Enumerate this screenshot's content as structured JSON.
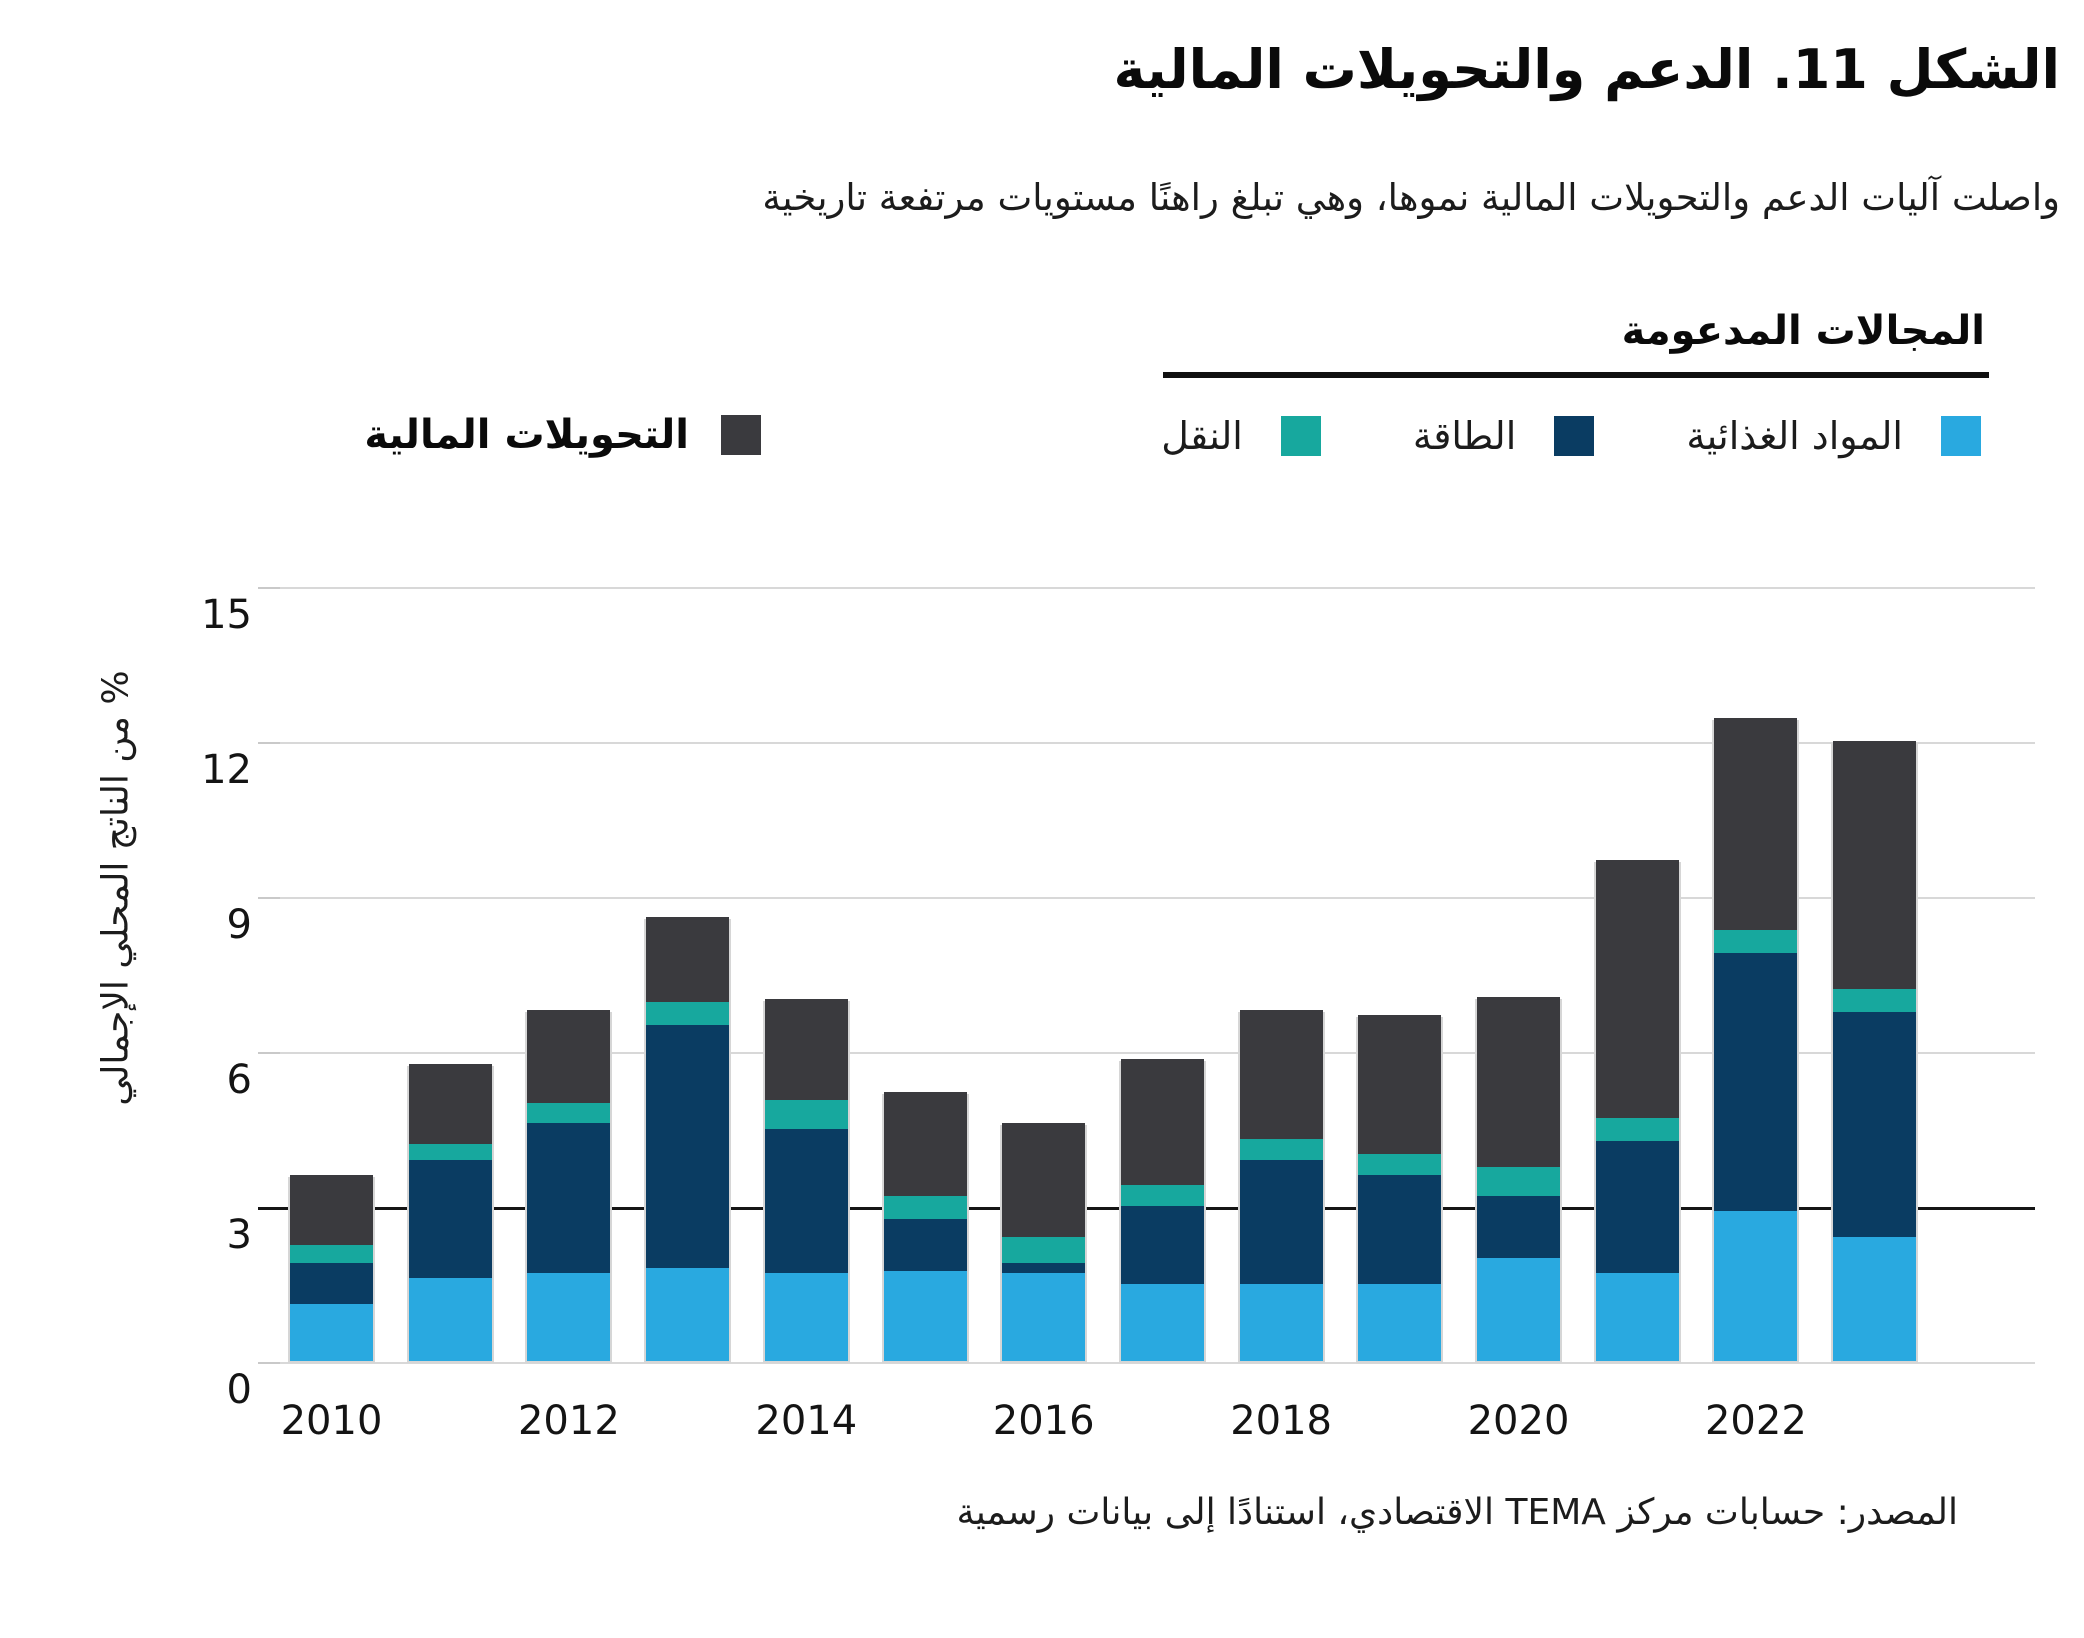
{
  "title": "الشكل 11. الدعم والتحويلات المالية",
  "subtitle": "واصلت آليات الدعم والتحويلات المالية نموها، وهي تبلغ راهنًا مستويات مرتفعة تاريخية",
  "legend": {
    "group_header": "المجالات المدعومة",
    "categories": [
      {
        "label": "المواد الغذائية",
        "color": "#29A9E0"
      },
      {
        "label": "الطاقة",
        "color": "#0A3C62"
      },
      {
        "label": "النقل",
        "color": "#17A89E"
      }
    ],
    "transfers": {
      "label": "التحويلات المالية",
      "color": "#3A3A3E"
    }
  },
  "axes": {
    "y_title": "% من الناتج المحلي الإجمالي",
    "y_ticks": [
      0,
      3,
      6,
      9,
      12,
      15
    ],
    "x_ticks": [
      "2010",
      "2012",
      "2014",
      "2016",
      "2018",
      "2020",
      "2022"
    ],
    "reference_line_value": 3,
    "grid_color": "#d8d8d8",
    "reference_line_color": "#151515"
  },
  "source": "المصدر: حسابات مركز TEMA الاقتصادي، استنادًا إلى بيانات رسمية",
  "chart_data": {
    "type": "bar",
    "stacked": true,
    "title": "الشكل 11. الدعم والتحويلات المالية",
    "xlabel": "",
    "ylabel": "% من الناتج المحلي الإجمالي",
    "ylim": [
      0,
      15
    ],
    "grid": true,
    "legend_position": "top",
    "categories": [
      2010,
      2011,
      2012,
      2013,
      2014,
      2015,
      2016,
      2017,
      2018,
      2019,
      2020,
      2021,
      2022,
      2023
    ],
    "series": [
      {
        "name": "المواد الغذائية",
        "color": "#29A9E0",
        "values": [
          1.1,
          1.6,
          1.7,
          1.8,
          1.7,
          1.75,
          1.7,
          1.5,
          1.5,
          1.5,
          2.0,
          1.7,
          2.9,
          2.4
        ]
      },
      {
        "name": "الطاقة",
        "color": "#0A3C62",
        "values": [
          0.8,
          2.3,
          2.9,
          4.7,
          2.8,
          1.0,
          0.2,
          1.5,
          2.4,
          2.1,
          1.2,
          2.55,
          5.0,
          4.35
        ]
      },
      {
        "name": "النقل",
        "color": "#17A89E",
        "values": [
          0.35,
          0.3,
          0.4,
          0.45,
          0.55,
          0.45,
          0.5,
          0.4,
          0.4,
          0.4,
          0.55,
          0.45,
          0.45,
          0.45
        ]
      },
      {
        "name": "التحويلات المالية",
        "color": "#3A3A3E",
        "values": [
          1.35,
          1.55,
          1.8,
          1.65,
          1.95,
          2.0,
          2.2,
          2.45,
          2.5,
          2.7,
          3.3,
          5.0,
          4.1,
          4.8
        ]
      }
    ],
    "totals": [
      3.6,
      5.75,
      6.8,
      8.6,
      7.0,
      5.2,
      4.6,
      5.85,
      6.8,
      6.7,
      7.05,
      9.7,
      12.45,
      12.0
    ]
  }
}
